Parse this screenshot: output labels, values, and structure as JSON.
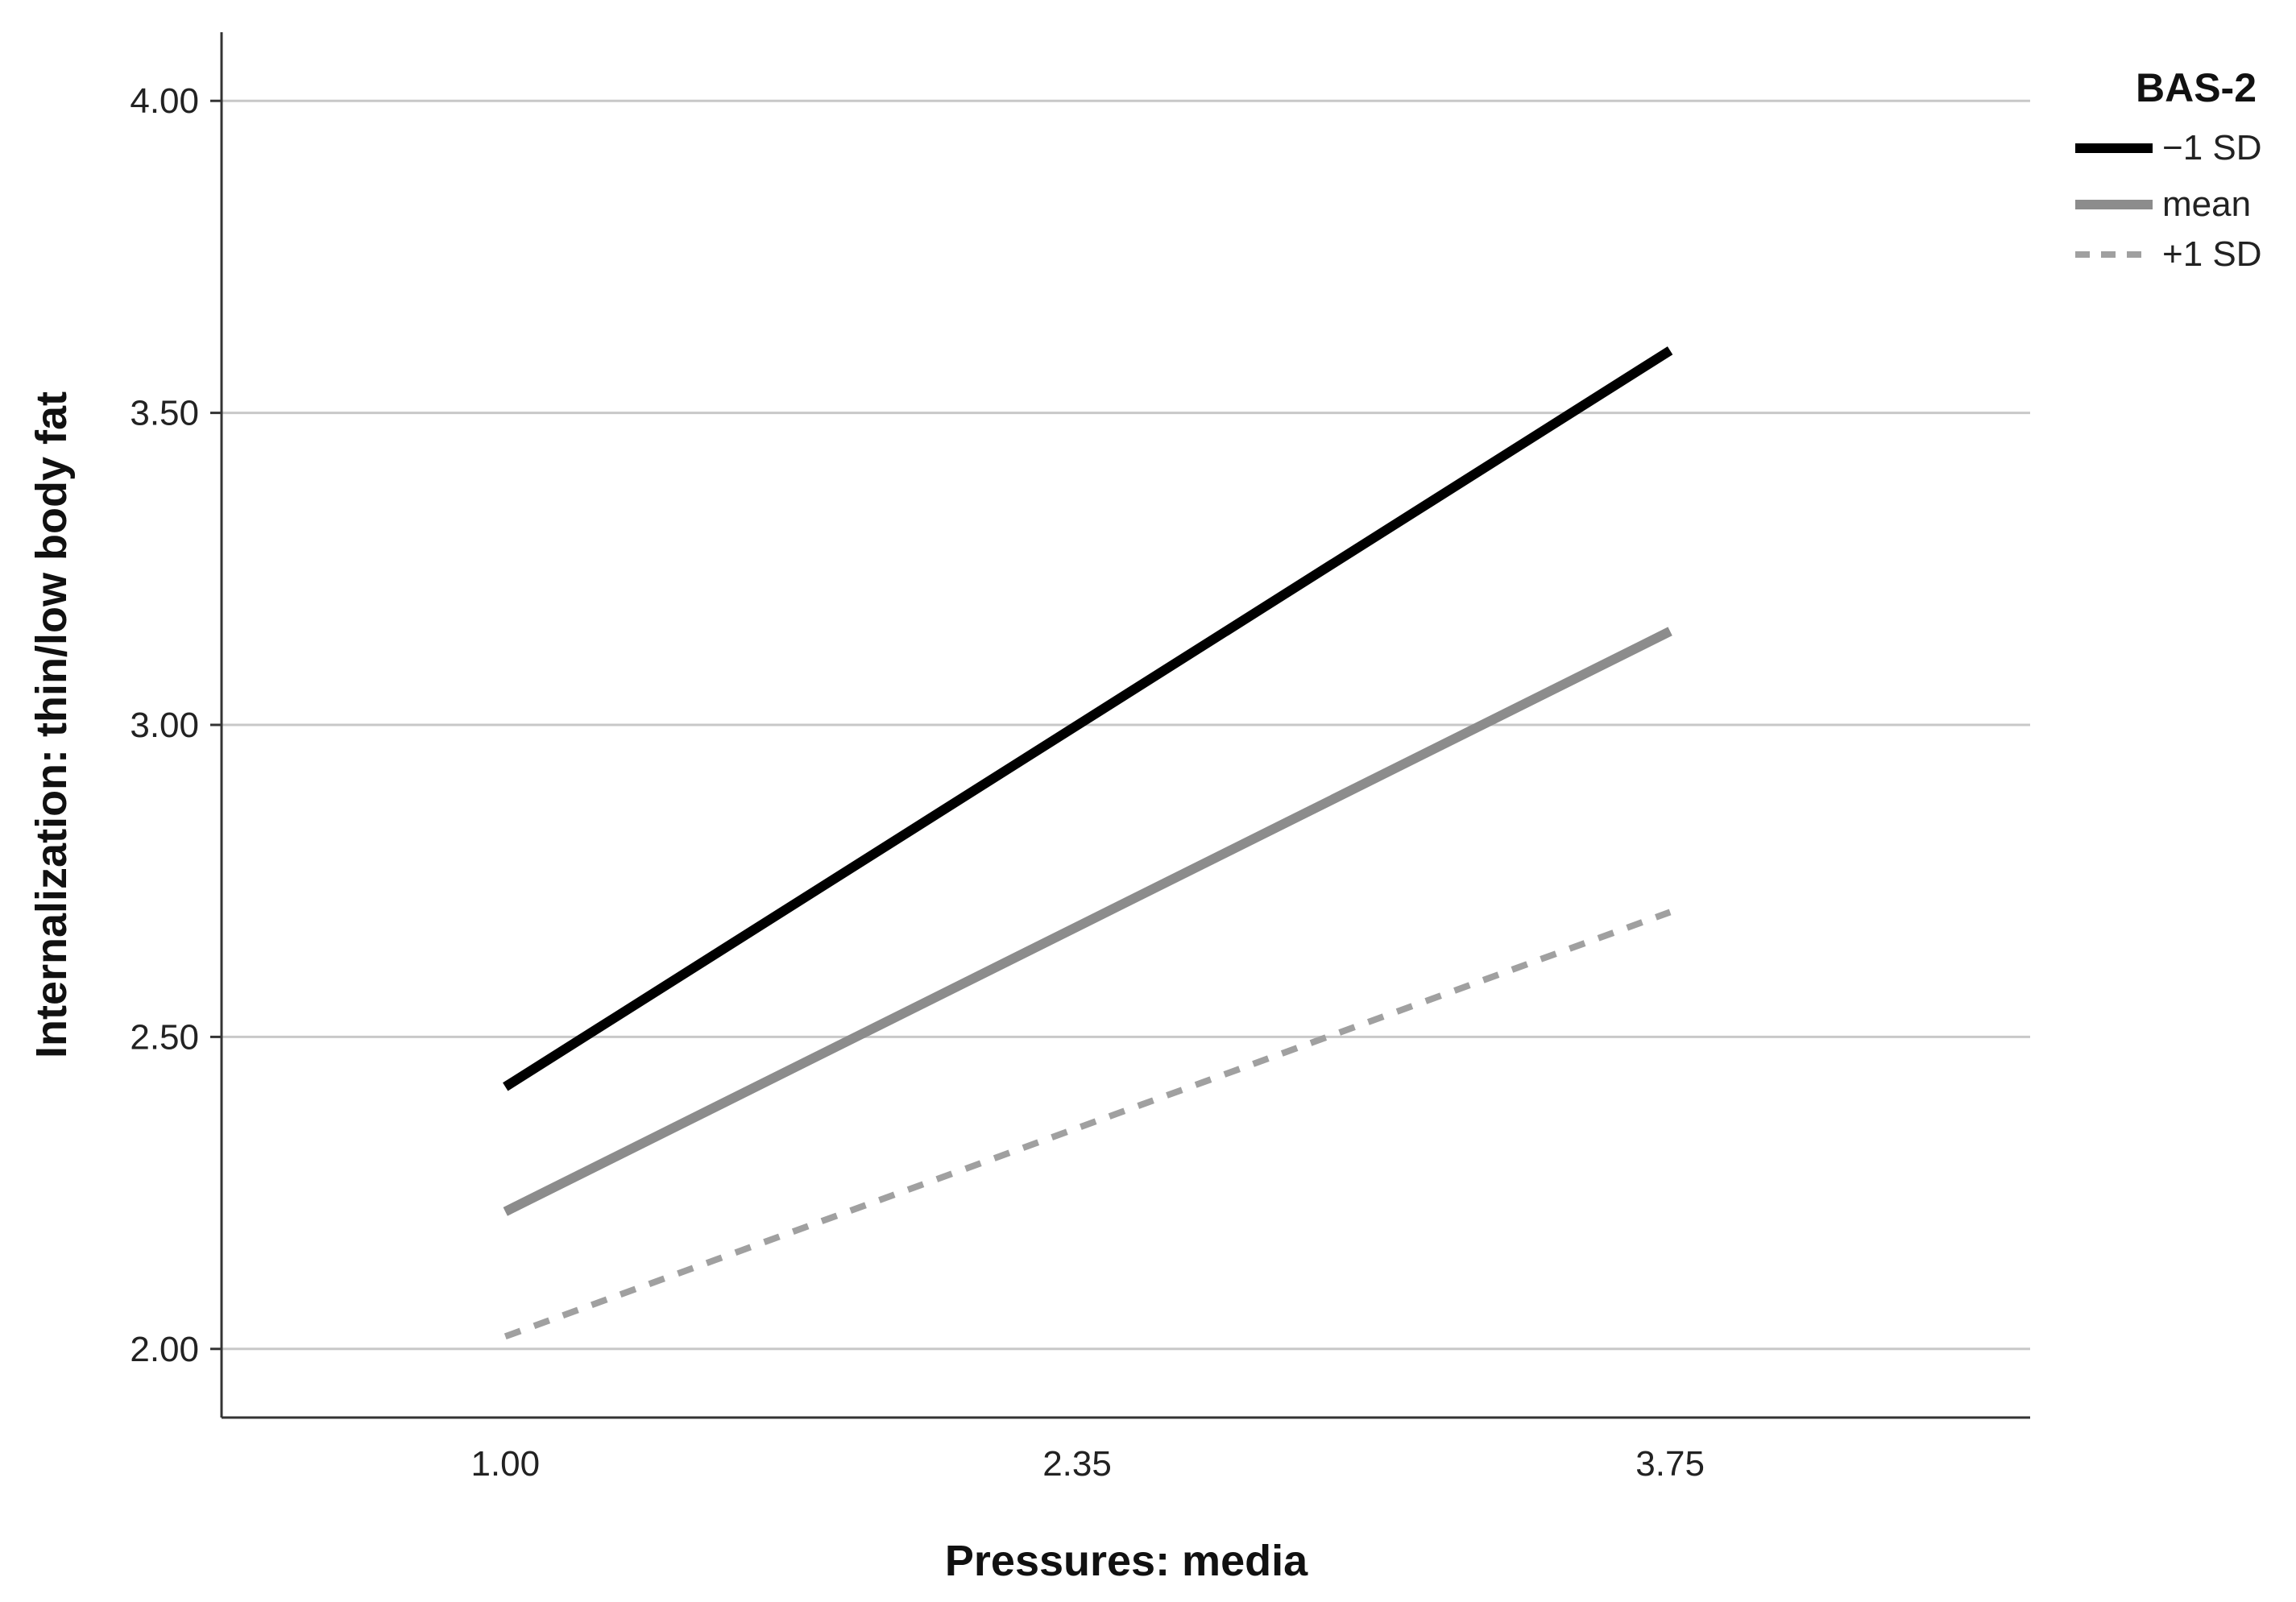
{
  "chart_data": {
    "type": "line",
    "xlabel": "Pressures: media",
    "ylabel": "Internalization: thin/low body fat",
    "x": [
      1.0,
      3.75
    ],
    "x_ticks": [
      "1.00",
      "2.35",
      "3.75"
    ],
    "x_tick_values": [
      1.0,
      2.35,
      3.75
    ],
    "y_ticks": [
      "2.00",
      "2.50",
      "3.00",
      "3.50",
      "4.00"
    ],
    "y_tick_values": [
      2.0,
      2.5,
      3.0,
      3.5,
      4.0
    ],
    "ylim": [
      1.89,
      4.11
    ],
    "xlim": [
      0.33,
      4.6
    ],
    "grid": "horizontal",
    "legend": {
      "title": "BAS-2",
      "placement": "top-right"
    },
    "series": [
      {
        "name": "−1 SD",
        "values": [
          2.42,
          3.6
        ],
        "color": "#000000",
        "style": "solid"
      },
      {
        "name": "mean",
        "values": [
          2.22,
          3.15
        ],
        "color": "#8c8c8c",
        "style": "solid"
      },
      {
        "name": "+1 SD",
        "values": [
          2.02,
          2.7
        ],
        "color": "#a0a0a0",
        "style": "dashed"
      }
    ]
  }
}
